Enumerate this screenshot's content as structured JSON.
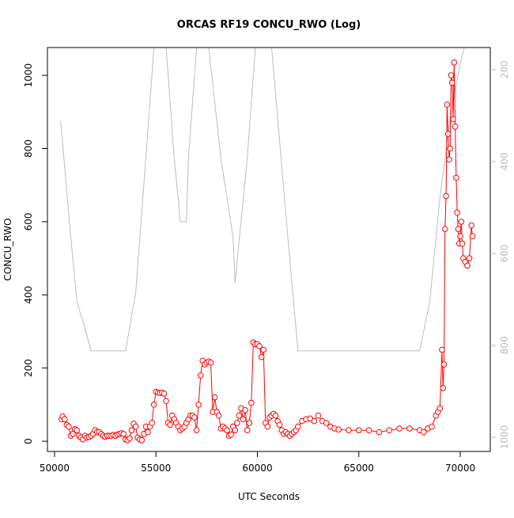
{
  "chart_data": {
    "type": "line",
    "title": "ORCAS RF19 CONCU_RWO (Log)",
    "x_label": "UTC Seconds",
    "y_label": "CONCU_RWO",
    "xlim": [
      49650,
      71480
    ],
    "ylim": [
      -28,
      1076
    ],
    "y2lim": [
      1031,
      152
    ],
    "xticks": [
      50000,
      55000,
      60000,
      65000,
      70000
    ],
    "yticks": [
      0,
      200,
      400,
      600,
      800,
      1000
    ],
    "y2ticks": [
      200,
      400,
      600,
      800,
      1000
    ],
    "y2_tick_color": "#bbbbbb",
    "series": [
      {
        "color": "#bbbbbb",
        "axis": "y2",
        "markers": false,
        "x": [
          50300,
          50800,
          51100,
          51250,
          51400,
          51800,
          53500,
          54000,
          54500,
          54900,
          55100,
          55400,
          55500,
          55900,
          56200,
          56300,
          56500,
          56600,
          57000,
          57200,
          57500,
          57600,
          58200,
          58800,
          58900,
          59000,
          59500,
          59900,
          60100,
          60500,
          60700,
          61500,
          62000,
          68000,
          68500,
          69000,
          69500,
          70000,
          70200,
          70400
        ],
        "values": [
          312,
          565,
          703,
          727,
          747,
          812,
          812,
          686,
          393,
          152,
          100,
          100,
          152,
          393,
          531,
          531,
          531,
          393,
          152,
          100,
          100,
          152,
          393,
          565,
          665,
          617,
          393,
          152,
          100,
          100,
          152,
          565,
          812,
          812,
          703,
          479,
          307,
          186,
          152,
          100
        ]
      },
      {
        "color": "#ff0000",
        "axis": "y",
        "markers": true,
        "x": [
          50350,
          50400,
          50500,
          50600,
          50700,
          50800,
          50900,
          51000,
          51100,
          51200,
          51300,
          51400,
          51500,
          51600,
          51700,
          51800,
          51900,
          52000,
          52100,
          52200,
          52300,
          52400,
          52500,
          52600,
          52700,
          52800,
          52900,
          53000,
          53100,
          53200,
          53300,
          53400,
          53500,
          53600,
          53700,
          53800,
          53900,
          54000,
          54100,
          54200,
          54300,
          54400,
          54500,
          54600,
          54700,
          54800,
          54900,
          55000,
          55100,
          55200,
          55300,
          55400,
          55500,
          55600,
          55700,
          55800,
          55900,
          56000,
          56100,
          56200,
          56300,
          56400,
          56500,
          56600,
          56700,
          56800,
          56900,
          57000,
          57100,
          57200,
          57300,
          57400,
          57500,
          57600,
          57700,
          57800,
          57900,
          58000,
          58100,
          58200,
          58300,
          58400,
          58500,
          58600,
          58700,
          58800,
          58900,
          59000,
          59100,
          59200,
          59300,
          59400,
          59500,
          59600,
          59700,
          59800,
          59900,
          60000,
          60100,
          60200,
          60300,
          60400,
          60500,
          60600,
          60700,
          60800,
          60900,
          61000,
          61100,
          61200,
          61300,
          61400,
          61500,
          61600,
          61700,
          61800,
          61900,
          62000,
          62200,
          62400,
          62600,
          62800,
          63000,
          63200,
          63400,
          63600,
          63800,
          64000,
          64500,
          65000,
          65500,
          66000,
          66500,
          67000,
          67500,
          68000,
          68200,
          68400,
          68600,
          68800,
          68900,
          69000,
          69100,
          69150,
          69200,
          69250,
          69300,
          69350,
          69400,
          69450,
          69500,
          69550,
          69600,
          69650,
          69700,
          69750,
          69800,
          69850,
          69900,
          69950,
          70000,
          70050,
          70100,
          70150,
          70250,
          70350,
          70450,
          70550,
          70600
        ],
        "values": [
          60,
          68,
          60,
          45,
          40,
          15,
          20,
          33,
          30,
          15,
          10,
          5,
          15,
          10,
          12,
          15,
          20,
          30,
          25,
          25,
          20,
          15,
          12,
          15,
          15,
          15,
          17,
          15,
          18,
          20,
          22,
          20,
          5,
          3,
          8,
          30,
          48,
          40,
          10,
          5,
          3,
          20,
          40,
          25,
          40,
          50,
          100,
          135,
          133,
          132,
          133,
          130,
          110,
          50,
          45,
          70,
          60,
          50,
          40,
          30,
          35,
          40,
          50,
          60,
          70,
          70,
          65,
          30,
          100,
          180,
          220,
          210,
          215,
          218,
          215,
          80,
          120,
          80,
          70,
          35,
          40,
          35,
          30,
          15,
          18,
          40,
          30,
          50,
          70,
          90,
          60,
          85,
          30,
          50,
          105,
          270,
          265,
          265,
          260,
          230,
          250,
          50,
          40,
          65,
          70,
          75,
          70,
          55,
          45,
          30,
          20,
          25,
          20,
          15,
          20,
          25,
          30,
          40,
          55,
          60,
          62,
          55,
          70,
          55,
          50,
          40,
          35,
          32,
          30,
          30,
          30,
          25,
          30,
          35,
          35,
          30,
          25,
          35,
          40,
          70,
          80,
          90,
          250,
          145,
          210,
          580,
          670,
          920,
          840,
          770,
          800,
          1000,
          980,
          880,
          1035,
          860,
          720,
          625,
          580,
          540,
          560,
          600,
          540,
          500,
          490,
          480,
          500,
          590,
          560
        ]
      }
    ]
  }
}
